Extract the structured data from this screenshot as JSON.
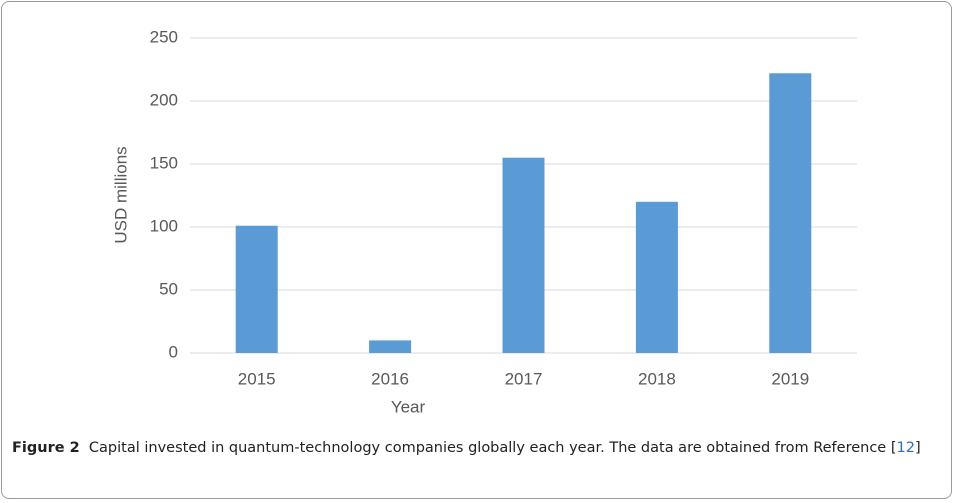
{
  "chart_data": {
    "type": "bar",
    "xlabel": "Year",
    "ylabel": "USD millions",
    "categories": [
      "2015",
      "2016",
      "2017",
      "2018",
      "2019"
    ],
    "values": [
      101,
      10,
      155,
      120,
      222
    ],
    "color": "#5b9bd5",
    "ylim": [
      0,
      250
    ],
    "yticks": [
      0,
      50,
      100,
      150,
      200,
      250
    ],
    "grid": true
  },
  "caption": {
    "label": "Figure 2",
    "text": "Capital invested in quantum-technology companies globally each year. The data are obtained from Reference",
    "open": "[",
    "ref": "12",
    "close": "]"
  }
}
